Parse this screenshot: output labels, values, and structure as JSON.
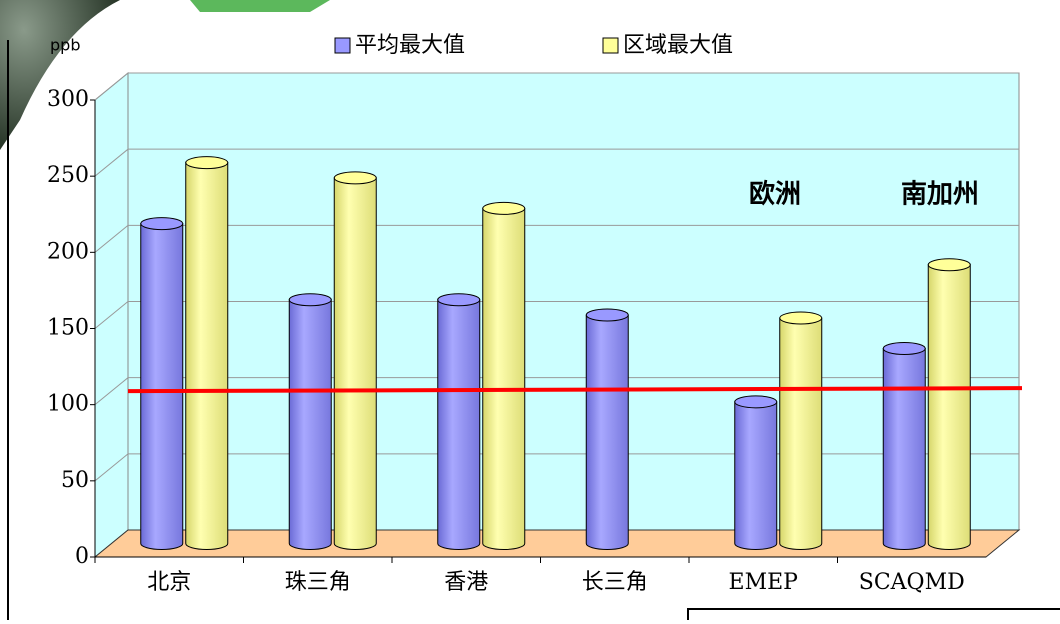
{
  "chart_data": {
    "type": "bar3d",
    "y_label": "ppb",
    "categories": [
      "北京",
      "珠三角",
      "香港",
      "长三角",
      "EMEP",
      "SCAQMD"
    ],
    "series": [
      {
        "name": "平均最大值",
        "color": "#9999ff",
        "values": [
          210,
          160,
          160,
          150,
          93,
          128
        ]
      },
      {
        "name": "区域最大值",
        "color": "#ffff99",
        "values": [
          250,
          240,
          220,
          null,
          148,
          183
        ]
      }
    ],
    "ylim": [
      0,
      300
    ],
    "yticks": [
      0,
      50,
      100,
      150,
      200,
      250,
      300
    ],
    "grid": true,
    "reference_line": {
      "value": 100,
      "color": "#ff0000"
    },
    "annotations": [
      "欧洲",
      "南加州"
    ],
    "wall_color": "#ccffff",
    "floor_color": "#ffcc99"
  }
}
